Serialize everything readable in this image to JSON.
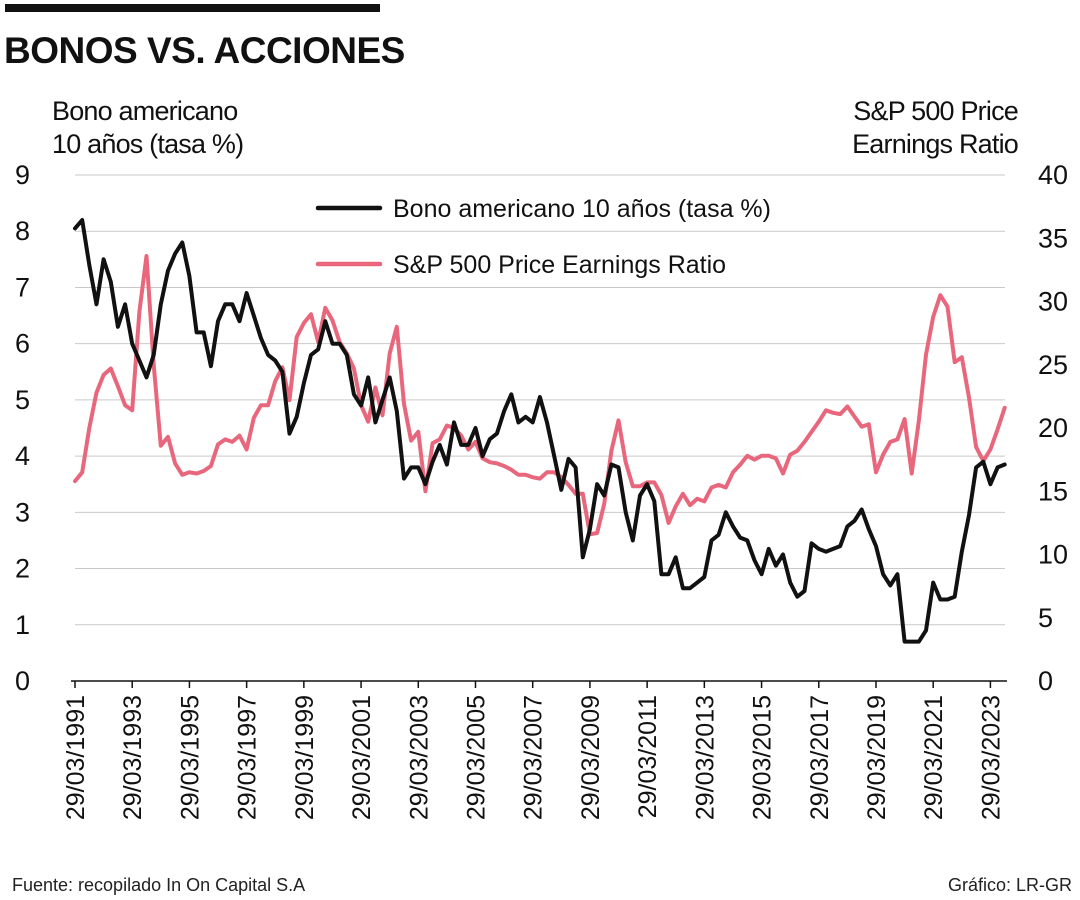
{
  "chart_data": {
    "type": "line",
    "title": "BONOS VS. ACCIONES",
    "y_left_label": [
      "Bono americano",
      "10 años (tasa %)"
    ],
    "y_right_label": [
      "S&P 500 Price",
      "Earnings Ratio"
    ],
    "y_left_lim": [
      0,
      9
    ],
    "y_left_ticks": [
      "0",
      "1",
      "2",
      "3",
      "4",
      "5",
      "6",
      "7",
      "8",
      "9"
    ],
    "y_right_lim": [
      0,
      40
    ],
    "y_right_ticks": [
      "0",
      "5",
      "10",
      "15",
      "20",
      "25",
      "30",
      "35",
      "40"
    ],
    "x_range": [
      1991.24,
      2023.75
    ],
    "x_ticks": [
      {
        "year": 1991.24,
        "label": "29/03/1991"
      },
      {
        "year": 1993.24,
        "label": "29/03/1993"
      },
      {
        "year": 1995.24,
        "label": "29/03/1995"
      },
      {
        "year": 1997.24,
        "label": "29/03/1997"
      },
      {
        "year": 1999.24,
        "label": "29/03/1999"
      },
      {
        "year": 2001.24,
        "label": "29/03/2001"
      },
      {
        "year": 2003.24,
        "label": "29/03/2003"
      },
      {
        "year": 2005.24,
        "label": "29/03/2005"
      },
      {
        "year": 2007.24,
        "label": "29/03/2007"
      },
      {
        "year": 2009.24,
        "label": "29/03/2009"
      },
      {
        "year": 2011.24,
        "label": "29/03/2011"
      },
      {
        "year": 2013.24,
        "label": "29/03/2013"
      },
      {
        "year": 2015.24,
        "label": "29/03/2015"
      },
      {
        "year": 2017.24,
        "label": "29/03/2017"
      },
      {
        "year": 2019.24,
        "label": "29/03/2019"
      },
      {
        "year": 2021.24,
        "label": "29/03/2021"
      },
      {
        "year": 2023.24,
        "label": "29/03/2023"
      }
    ],
    "legend": [
      "Bono americano 10 años (tasa %)",
      "S&P 500 Price Earnings Ratio"
    ],
    "series": [
      {
        "name": "Bono americano 10 años (tasa %)",
        "axis": "left",
        "color": "#111111",
        "x": [
          1991.24,
          1991.49,
          1991.74,
          1991.99,
          1992.24,
          1992.49,
          1992.74,
          1992.99,
          1993.24,
          1993.49,
          1993.74,
          1993.99,
          1994.24,
          1994.49,
          1994.74,
          1994.99,
          1995.24,
          1995.49,
          1995.74,
          1995.99,
          1996.24,
          1996.49,
          1996.74,
          1996.99,
          1997.24,
          1997.49,
          1997.74,
          1997.99,
          1998.24,
          1998.49,
          1998.74,
          1998.99,
          1999.24,
          1999.49,
          1999.74,
          1999.99,
          2000.24,
          2000.49,
          2000.74,
          2000.99,
          2001.24,
          2001.49,
          2001.74,
          2001.99,
          2002.24,
          2002.49,
          2002.74,
          2002.99,
          2003.24,
          2003.49,
          2003.74,
          2003.99,
          2004.24,
          2004.49,
          2004.74,
          2004.99,
          2005.24,
          2005.49,
          2005.74,
          2005.99,
          2006.24,
          2006.49,
          2006.74,
          2006.99,
          2007.24,
          2007.49,
          2007.74,
          2007.99,
          2008.24,
          2008.49,
          2008.74,
          2008.99,
          2009.24,
          2009.49,
          2009.74,
          2009.99,
          2010.24,
          2010.49,
          2010.74,
          2010.99,
          2011.24,
          2011.49,
          2011.74,
          2011.99,
          2012.24,
          2012.49,
          2012.74,
          2012.99,
          2013.24,
          2013.49,
          2013.74,
          2013.99,
          2014.24,
          2014.49,
          2014.74,
          2014.99,
          2015.24,
          2015.49,
          2015.74,
          2015.99,
          2016.24,
          2016.49,
          2016.74,
          2016.99,
          2017.24,
          2017.49,
          2017.74,
          2017.99,
          2018.24,
          2018.49,
          2018.74,
          2018.99,
          2019.24,
          2019.49,
          2019.74,
          2019.99,
          2020.24,
          2020.49,
          2020.74,
          2020.99,
          2021.24,
          2021.49,
          2021.74,
          2021.99,
          2022.24,
          2022.49,
          2022.74,
          2022.99,
          2023.24,
          2023.49,
          2023.74
        ],
        "values": [
          8.05,
          8.2,
          7.4,
          6.7,
          7.5,
          7.1,
          6.3,
          6.7,
          6.0,
          5.7,
          5.4,
          5.8,
          6.7,
          7.3,
          7.6,
          7.8,
          7.2,
          6.2,
          6.2,
          5.6,
          6.4,
          6.7,
          6.7,
          6.4,
          6.9,
          6.5,
          6.1,
          5.8,
          5.7,
          5.5,
          4.4,
          4.7,
          5.3,
          5.8,
          5.9,
          6.4,
          6.0,
          6.0,
          5.8,
          5.1,
          4.9,
          5.4,
          4.6,
          5.0,
          5.4,
          4.8,
          3.6,
          3.8,
          3.8,
          3.5,
          3.9,
          4.2,
          3.85,
          4.6,
          4.2,
          4.2,
          4.5,
          4.0,
          4.3,
          4.4,
          4.8,
          5.1,
          4.6,
          4.7,
          4.6,
          5.05,
          4.6,
          4.0,
          3.4,
          3.95,
          3.8,
          2.2,
          2.7,
          3.5,
          3.3,
          3.85,
          3.8,
          3.0,
          2.5,
          3.3,
          3.5,
          3.2,
          1.9,
          1.9,
          2.2,
          1.65,
          1.65,
          1.75,
          1.85,
          2.5,
          2.6,
          3.0,
          2.75,
          2.55,
          2.5,
          2.15,
          1.9,
          2.35,
          2.05,
          2.25,
          1.75,
          1.5,
          1.6,
          2.45,
          2.35,
          2.3,
          2.35,
          2.4,
          2.75,
          2.85,
          3.05,
          2.7,
          2.4,
          1.9,
          1.7,
          1.9,
          0.7,
          0.7,
          0.7,
          0.9,
          1.75,
          1.45,
          1.45,
          1.5,
          2.3,
          2.95,
          3.8,
          3.9,
          3.5,
          3.8,
          3.85
        ]
      },
      {
        "name": "S&P 500 Price Earnings Ratio",
        "axis": "right",
        "color": "#e8677c",
        "x": [
          1991.24,
          1991.49,
          1991.74,
          1991.99,
          1992.24,
          1992.49,
          1992.74,
          1992.99,
          1993.24,
          1993.49,
          1993.74,
          1993.99,
          1994.24,
          1994.49,
          1994.74,
          1994.99,
          1995.24,
          1995.49,
          1995.74,
          1995.99,
          1996.24,
          1996.49,
          1996.74,
          1996.99,
          1997.24,
          1997.49,
          1997.74,
          1997.99,
          1998.24,
          1998.49,
          1998.74,
          1998.99,
          1999.24,
          1999.49,
          1999.74,
          1999.99,
          2000.24,
          2000.49,
          2000.74,
          2000.99,
          2001.24,
          2001.49,
          2001.74,
          2001.99,
          2002.24,
          2002.49,
          2002.74,
          2002.99,
          2003.24,
          2003.49,
          2003.74,
          2003.99,
          2004.24,
          2004.49,
          2004.74,
          2004.99,
          2005.24,
          2005.49,
          2005.74,
          2005.99,
          2006.24,
          2006.49,
          2006.74,
          2006.99,
          2007.24,
          2007.49,
          2007.74,
          2007.99,
          2008.24,
          2008.49,
          2008.74,
          2008.99,
          2009.24,
          2009.49,
          2009.74,
          2009.99,
          2010.24,
          2010.49,
          2010.74,
          2010.99,
          2011.24,
          2011.49,
          2011.74,
          2011.99,
          2012.24,
          2012.49,
          2012.74,
          2012.99,
          2013.24,
          2013.49,
          2013.74,
          2013.99,
          2014.24,
          2014.49,
          2014.74,
          2014.99,
          2015.24,
          2015.49,
          2015.74,
          2015.99,
          2016.24,
          2016.49,
          2016.74,
          2016.99,
          2017.24,
          2017.49,
          2017.74,
          2017.99,
          2018.24,
          2018.49,
          2018.74,
          2018.99,
          2019.24,
          2019.49,
          2019.74,
          2019.99,
          2020.24,
          2020.49,
          2020.74,
          2020.99,
          2021.24,
          2021.49,
          2021.74,
          2021.99,
          2022.24,
          2022.49,
          2022.74,
          2022.99,
          2023.24,
          2023.49,
          2023.74
        ],
        "values": [
          15.8,
          16.5,
          20.0,
          22.8,
          24.2,
          24.7,
          23.3,
          21.8,
          21.4,
          29.2,
          33.6,
          25.0,
          18.6,
          19.3,
          17.2,
          16.3,
          16.5,
          16.4,
          16.6,
          17.0,
          18.7,
          19.1,
          18.9,
          19.4,
          18.3,
          20.8,
          21.8,
          21.8,
          23.7,
          24.8,
          22.2,
          27.2,
          28.3,
          29.0,
          26.8,
          29.5,
          28.5,
          26.8,
          25.9,
          24.7,
          21.8,
          20.5,
          23.2,
          21.0,
          25.9,
          28.0,
          21.9,
          19.0,
          19.7,
          15.0,
          18.8,
          19.1,
          20.2,
          20.0,
          19.4,
          18.3,
          18.9,
          17.6,
          17.3,
          17.2,
          17.0,
          16.7,
          16.3,
          16.3,
          16.1,
          16.0,
          16.5,
          16.5,
          16.1,
          15.5,
          14.8,
          14.8,
          11.6,
          11.7,
          14.0,
          18.2,
          20.6,
          17.3,
          15.4,
          15.4,
          15.7,
          15.7,
          14.7,
          12.5,
          13.8,
          14.8,
          13.9,
          14.4,
          14.2,
          15.3,
          15.5,
          15.3,
          16.5,
          17.1,
          17.8,
          17.5,
          17.8,
          17.8,
          17.6,
          16.4,
          17.9,
          18.2,
          18.9,
          19.7,
          20.5,
          21.4,
          21.2,
          21.1,
          21.7,
          20.9,
          20.1,
          20.3,
          16.5,
          17.9,
          18.9,
          19.1,
          20.7,
          16.4,
          20.6,
          25.8,
          28.8,
          30.5,
          29.6,
          25.2,
          25.6,
          22.4,
          18.5,
          17.4,
          18.3,
          19.9,
          21.6
        ]
      }
    ]
  },
  "footer": {
    "source": "Fuente: recopilado In On Capital S.A",
    "credit": "Gráfico: LR-GR"
  }
}
